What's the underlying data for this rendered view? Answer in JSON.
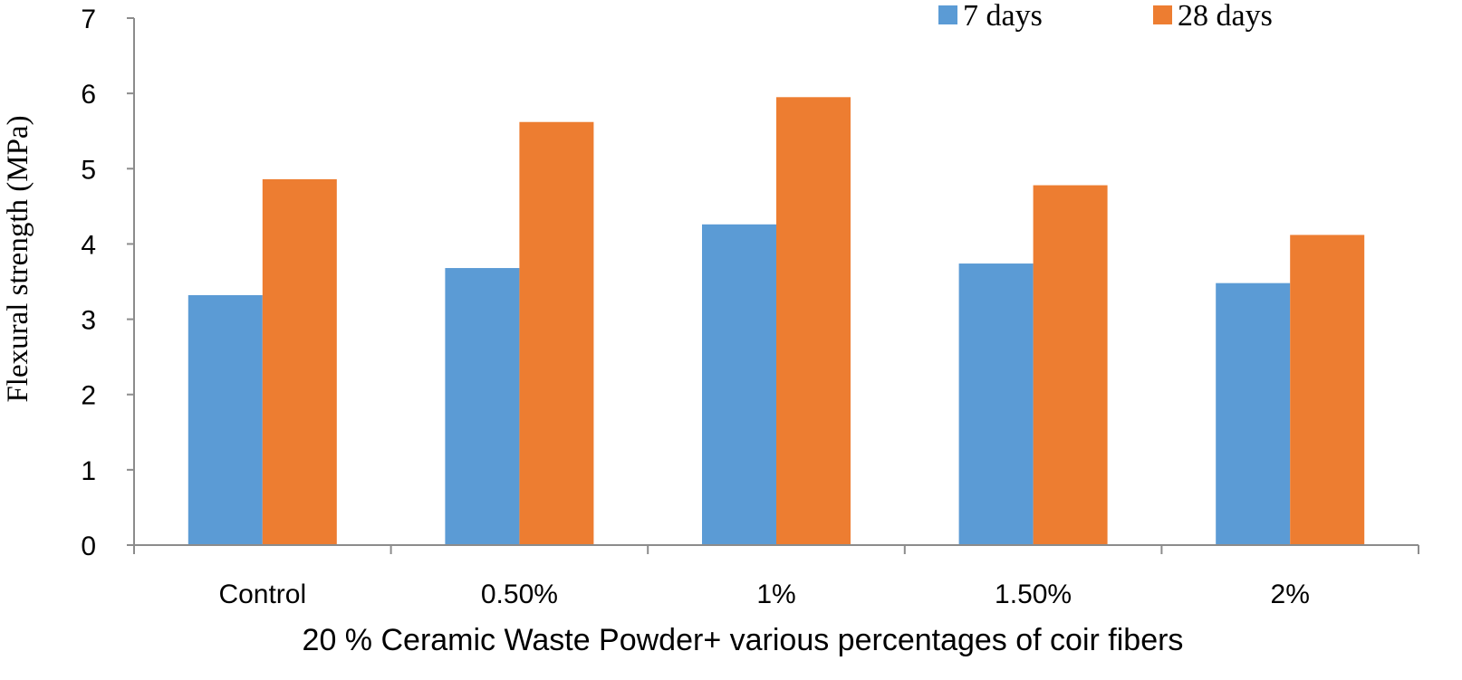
{
  "chart_data": {
    "type": "bar",
    "title": "",
    "xlabel": "20 % Ceramic Waste Powder+ various percentages of coir fibers",
    "ylabel": "Flexural strength (MPa)",
    "ylim": [
      0,
      7
    ],
    "yticks": [
      "0",
      "1",
      "2",
      "3",
      "4",
      "5",
      "6",
      "7"
    ],
    "grid": false,
    "legend_position": "top-right",
    "categories": [
      "Control",
      "0.50%",
      "1%",
      "1.50%",
      "2%"
    ],
    "series": [
      {
        "name": "7 days",
        "color": "#5b9bd5",
        "values": [
          3.32,
          3.68,
          4.26,
          3.74,
          3.48
        ]
      },
      {
        "name": "28 days",
        "color": "#ed7d31",
        "values": [
          4.86,
          5.62,
          5.95,
          4.78,
          4.12
        ]
      }
    ]
  }
}
